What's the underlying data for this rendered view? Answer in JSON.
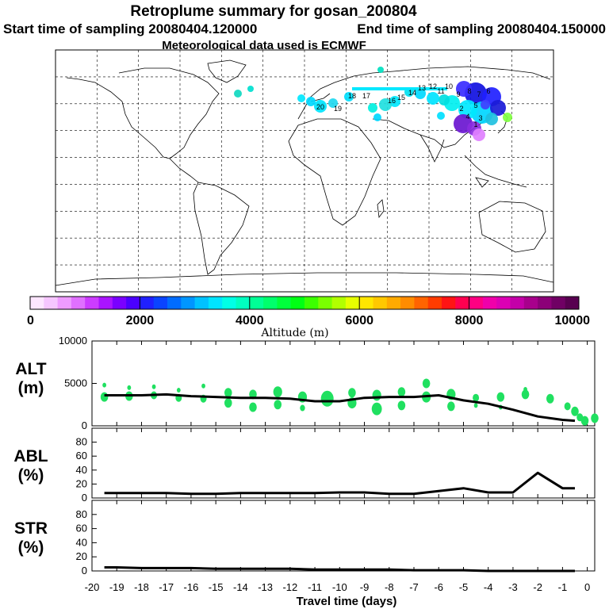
{
  "header": {
    "title": "Retroplume summary for gosan_200804",
    "start_label": "Start time of sampling 20080404.120000",
    "end_label": "End time of sampling 20080404.150000",
    "met_label": "Meteorological data used is ECMWF"
  },
  "colorbar": {
    "label": "Altitude (m)",
    "ticks": [
      "0",
      "2000",
      "4000",
      "6000",
      "8000",
      "10000"
    ],
    "colors": [
      "#fde6ff",
      "#f6c6ff",
      "#ee9cff",
      "#e070ff",
      "#cc3cff",
      "#aa14ff",
      "#7a00ff",
      "#4b00ff",
      "#2020ff",
      "#0a44ff",
      "#006cff",
      "#0096ff",
      "#00c2ff",
      "#00e4ff",
      "#00ffe6",
      "#00ffc0",
      "#00ff96",
      "#00ff6c",
      "#00ff3c",
      "#00ff14",
      "#3cff00",
      "#7aff00",
      "#b2ff00",
      "#e6ff00",
      "#ffe600",
      "#ffc800",
      "#ffaa00",
      "#ff8c00",
      "#ff6400",
      "#ff3c00",
      "#ff1414",
      "#ff0050",
      "#ff0082",
      "#f000aa",
      "#dc00b4",
      "#c400a8",
      "#a8008c",
      "#8c0078",
      "#700064",
      "#580050"
    ]
  },
  "map": {
    "labels": [
      "20",
      "19",
      "18",
      "17",
      "16",
      "15",
      "14",
      "13",
      "12",
      "11",
      "10",
      "9",
      "8",
      "7",
      "6",
      "5",
      "4",
      "3",
      "2",
      "1"
    ]
  },
  "chart_data": [
    {
      "type": "line",
      "panel": "ALT",
      "title": "ALT",
      "ylabel": "(m)",
      "ylim": [
        0,
        10000
      ],
      "yticks": [
        "10000",
        "5000",
        "0"
      ],
      "x": [
        -19.5,
        -19,
        -18,
        -17,
        -16,
        -15,
        -14,
        -13,
        -12,
        -11,
        -10,
        -9,
        -8,
        -7,
        -6,
        -5,
        -4,
        -3,
        -2,
        -1,
        -0.5
      ],
      "values": [
        3600,
        3600,
        3600,
        3700,
        3500,
        3400,
        3300,
        3300,
        3200,
        2900,
        2900,
        3300,
        3400,
        3400,
        3600,
        3000,
        2600,
        1900,
        1100,
        700,
        600
      ],
      "scatter": [
        {
          "x": -19.5,
          "y": 3400,
          "s": 6
        },
        {
          "x": -19.5,
          "y": 4800,
          "s": 3
        },
        {
          "x": -18.5,
          "y": 3500,
          "s": 6
        },
        {
          "x": -18.5,
          "y": 4500,
          "s": 3
        },
        {
          "x": -17.5,
          "y": 3600,
          "s": 5
        },
        {
          "x": -17.5,
          "y": 4600,
          "s": 3
        },
        {
          "x": -16.5,
          "y": 3300,
          "s": 5
        },
        {
          "x": -16.5,
          "y": 4200,
          "s": 3
        },
        {
          "x": -15.5,
          "y": 3200,
          "s": 5
        },
        {
          "x": -15.5,
          "y": 4700,
          "s": 3
        },
        {
          "x": -14.5,
          "y": 2700,
          "s": 6
        },
        {
          "x": -14.5,
          "y": 3900,
          "s": 6
        },
        {
          "x": -13.5,
          "y": 2200,
          "s": 6
        },
        {
          "x": -13.5,
          "y": 3700,
          "s": 6
        },
        {
          "x": -12.5,
          "y": 2500,
          "s": 6
        },
        {
          "x": -12.5,
          "y": 4000,
          "s": 7
        },
        {
          "x": -11.5,
          "y": 3400,
          "s": 7
        },
        {
          "x": -11.5,
          "y": 2100,
          "s": 4
        },
        {
          "x": -10.5,
          "y": 3200,
          "s": 10
        },
        {
          "x": -9.5,
          "y": 2700,
          "s": 7
        },
        {
          "x": -9.5,
          "y": 3900,
          "s": 6
        },
        {
          "x": -8.5,
          "y": 2000,
          "s": 8
        },
        {
          "x": -8.5,
          "y": 3600,
          "s": 7
        },
        {
          "x": -7.5,
          "y": 2400,
          "s": 6
        },
        {
          "x": -7.5,
          "y": 4000,
          "s": 6
        },
        {
          "x": -6.5,
          "y": 3400,
          "s": 7
        },
        {
          "x": -6.5,
          "y": 5000,
          "s": 6
        },
        {
          "x": -5.5,
          "y": 2300,
          "s": 6
        },
        {
          "x": -5.5,
          "y": 3700,
          "s": 7
        },
        {
          "x": -4.5,
          "y": 3300,
          "s": 5
        },
        {
          "x": -4.5,
          "y": 2400,
          "s": 3
        },
        {
          "x": -3.5,
          "y": 3400,
          "s": 6
        },
        {
          "x": -3.5,
          "y": 2200,
          "s": 3
        },
        {
          "x": -2.5,
          "y": 3700,
          "s": 6
        },
        {
          "x": -2.5,
          "y": 4300,
          "s": 3
        },
        {
          "x": -1.5,
          "y": 3200,
          "s": 6
        },
        {
          "x": -0.8,
          "y": 2300,
          "s": 5
        },
        {
          "x": -0.5,
          "y": 1700,
          "s": 6
        },
        {
          "x": -0.3,
          "y": 1000,
          "s": 5
        },
        {
          "x": -0.1,
          "y": 600,
          "s": 6
        },
        {
          "x": 0.3,
          "y": 900,
          "s": 6
        }
      ]
    },
    {
      "type": "line",
      "panel": "ABL",
      "title": "ABL",
      "ylabel": "(%)",
      "ylim": [
        0,
        100
      ],
      "yticks": [
        "80",
        "60",
        "40",
        "20",
        "0"
      ],
      "x": [
        -19.5,
        -19,
        -18,
        -17,
        -16,
        -15,
        -14,
        -13,
        -12,
        -11,
        -10,
        -9,
        -8,
        -7,
        -6,
        -5,
        -4,
        -3,
        -2,
        -1,
        -0.5
      ],
      "values": [
        7,
        7,
        7,
        7,
        6,
        6,
        7,
        7,
        7,
        7,
        8,
        8,
        6,
        6,
        10,
        14,
        8,
        8,
        36,
        14,
        14
      ]
    },
    {
      "type": "line",
      "panel": "STR",
      "title": "STR",
      "ylabel": "(%)",
      "ylim": [
        0,
        100
      ],
      "yticks": [
        "80",
        "60",
        "40",
        "20",
        "0"
      ],
      "x": [
        -19.5,
        -19,
        -18,
        -17,
        -16,
        -15,
        -14,
        -13,
        -12,
        -11,
        -10,
        -9,
        -8,
        -7,
        -6,
        -5,
        -4,
        -3,
        -2,
        -1,
        -0.5
      ],
      "values": [
        5,
        5,
        4,
        4,
        4,
        3,
        3,
        3,
        3,
        2,
        2,
        2,
        2,
        1,
        1,
        1,
        0,
        0,
        0,
        0,
        0
      ]
    }
  ],
  "xaxis": {
    "label": "Travel time (days)",
    "ticks": [
      "-20",
      "-19",
      "-18",
      "-17",
      "-16",
      "-15",
      "-14",
      "-13",
      "-12",
      "-11",
      "-10",
      "-9",
      "-8",
      "-7",
      "-6",
      "-5",
      "-4",
      "-3",
      "-2",
      "-1",
      "0"
    ]
  }
}
